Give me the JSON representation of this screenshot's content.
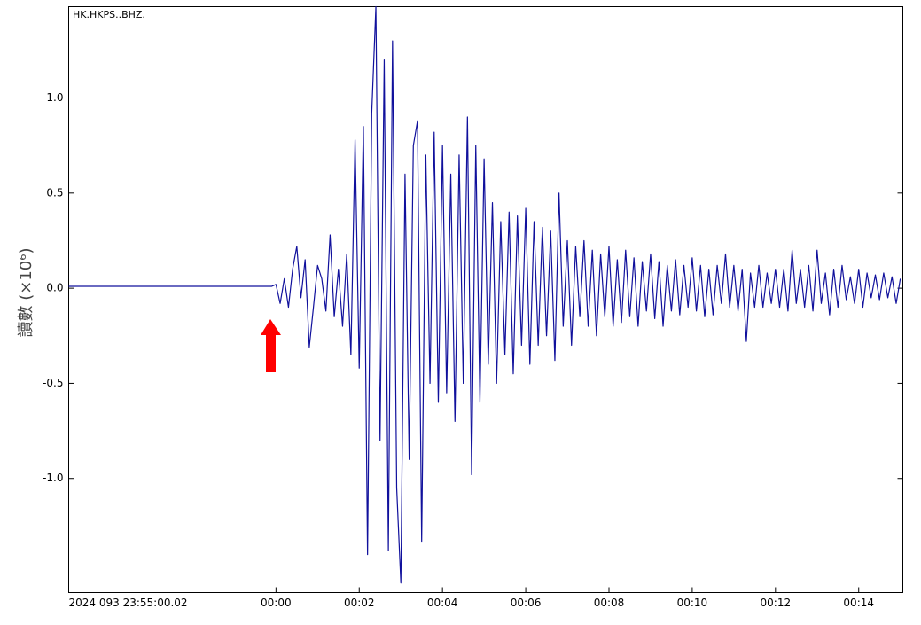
{
  "chart_data": {
    "type": "line",
    "title": "HK.HKPS..BHZ.",
    "y_label": "讀數 (×10⁶)",
    "xlim": [
      -4.98,
      15.06
    ],
    "ylim": [
      -1.6,
      1.48
    ],
    "xticks": [
      {
        "value": -4.98,
        "label": "2024 093 23:55:00.02"
      },
      {
        "value": 0,
        "label": "00:00"
      },
      {
        "value": 2,
        "label": "00:02"
      },
      {
        "value": 4,
        "label": "00:04"
      },
      {
        "value": 6,
        "label": "00:06"
      },
      {
        "value": 8,
        "label": "00:08"
      },
      {
        "value": 10,
        "label": "00:10"
      },
      {
        "value": 12,
        "label": "00:12"
      },
      {
        "value": 14,
        "label": "00:14"
      }
    ],
    "yticks": [
      {
        "value": -1,
        "label": "-1.0"
      },
      -0.5,
      {
        "value": 0,
        "label": "0.0"
      },
      0.5,
      {
        "value": 1,
        "label": "1.0"
      }
    ],
    "series": [
      {
        "color": "#10109c",
        "x": [
          -4.98,
          -2.5,
          -0.1,
          0.0,
          0.1,
          0.2,
          0.3,
          0.4,
          0.5,
          0.6,
          0.7,
          0.8,
          0.9,
          1.0,
          1.1,
          1.2,
          1.3,
          1.4,
          1.5,
          1.6,
          1.7,
          1.8,
          1.9,
          2.0,
          2.1,
          2.2,
          2.3,
          2.4,
          2.5,
          2.6,
          2.7,
          2.8,
          2.9,
          3.0,
          3.1,
          3.2,
          3.3,
          3.4,
          3.5,
          3.6,
          3.7,
          3.8,
          3.9,
          4.0,
          4.1,
          4.2,
          4.3,
          4.4,
          4.5,
          4.6,
          4.7,
          4.8,
          4.9,
          5.0,
          5.1,
          5.2,
          5.3,
          5.4,
          5.5,
          5.6,
          5.7,
          5.8,
          5.9,
          6.0,
          6.1,
          6.2,
          6.3,
          6.4,
          6.5,
          6.6,
          6.7,
          6.8,
          6.9,
          7.0,
          7.1,
          7.2,
          7.3,
          7.4,
          7.5,
          7.6,
          7.7,
          7.8,
          7.9,
          8.0,
          8.1,
          8.2,
          8.3,
          8.4,
          8.5,
          8.6,
          8.7,
          8.8,
          8.9,
          9.0,
          9.1,
          9.2,
          9.3,
          9.4,
          9.5,
          9.6,
          9.7,
          9.8,
          9.9,
          10.0,
          10.1,
          10.2,
          10.3,
          10.4,
          10.5,
          10.6,
          10.7,
          10.8,
          10.9,
          11.0,
          11.1,
          11.2,
          11.3,
          11.4,
          11.5,
          11.6,
          11.7,
          11.8,
          11.9,
          12.0,
          12.1,
          12.2,
          12.3,
          12.4,
          12.5,
          12.6,
          12.7,
          12.8,
          12.9,
          13.0,
          13.1,
          13.2,
          13.3,
          13.4,
          13.5,
          13.6,
          13.7,
          13.8,
          13.9,
          14.0,
          14.1,
          14.2,
          14.3,
          14.4,
          14.5,
          14.6,
          14.7,
          14.8,
          14.9,
          15.0
        ],
        "values": [
          0.01,
          0.01,
          0.01,
          0.02,
          -0.08,
          0.05,
          -0.1,
          0.1,
          0.22,
          -0.05,
          0.15,
          -0.31,
          -0.1,
          0.12,
          0.05,
          -0.12,
          0.28,
          -0.15,
          0.1,
          -0.2,
          0.18,
          -0.35,
          0.78,
          -0.42,
          0.85,
          -1.4,
          0.92,
          1.48,
          -0.8,
          1.2,
          -1.38,
          1.3,
          -1.05,
          -1.55,
          0.6,
          -0.9,
          0.75,
          0.88,
          -1.33,
          0.7,
          -0.5,
          0.82,
          -0.6,
          0.75,
          -0.55,
          0.6,
          -0.7,
          0.7,
          -0.5,
          0.9,
          -0.98,
          0.75,
          -0.6,
          0.68,
          -0.4,
          0.45,
          -0.5,
          0.35,
          -0.35,
          0.4,
          -0.45,
          0.38,
          -0.3,
          0.42,
          -0.4,
          0.35,
          -0.3,
          0.32,
          -0.25,
          0.3,
          -0.38,
          0.5,
          -0.2,
          0.25,
          -0.3,
          0.22,
          -0.15,
          0.25,
          -0.2,
          0.2,
          -0.25,
          0.18,
          -0.15,
          0.22,
          -0.2,
          0.15,
          -0.18,
          0.2,
          -0.15,
          0.16,
          -0.2,
          0.14,
          -0.12,
          0.18,
          -0.16,
          0.14,
          -0.2,
          0.12,
          -0.12,
          0.15,
          -0.14,
          0.12,
          -0.1,
          0.16,
          -0.12,
          0.12,
          -0.15,
          0.1,
          -0.14,
          0.12,
          -0.08,
          0.18,
          -0.1,
          0.12,
          -0.12,
          0.1,
          -0.28,
          0.08,
          -0.1,
          0.12,
          -0.1,
          0.08,
          -0.08,
          0.1,
          -0.1,
          0.1,
          -0.12,
          0.2,
          -0.08,
          0.1,
          -0.1,
          0.12,
          -0.12,
          0.2,
          -0.08,
          0.08,
          -0.14,
          0.1,
          -0.1,
          0.12,
          -0.06,
          0.06,
          -0.08,
          0.1,
          -0.1,
          0.08,
          -0.05,
          0.07,
          -0.06,
          0.08,
          -0.05,
          0.06,
          -0.08,
          0.05
        ]
      }
    ]
  }
}
